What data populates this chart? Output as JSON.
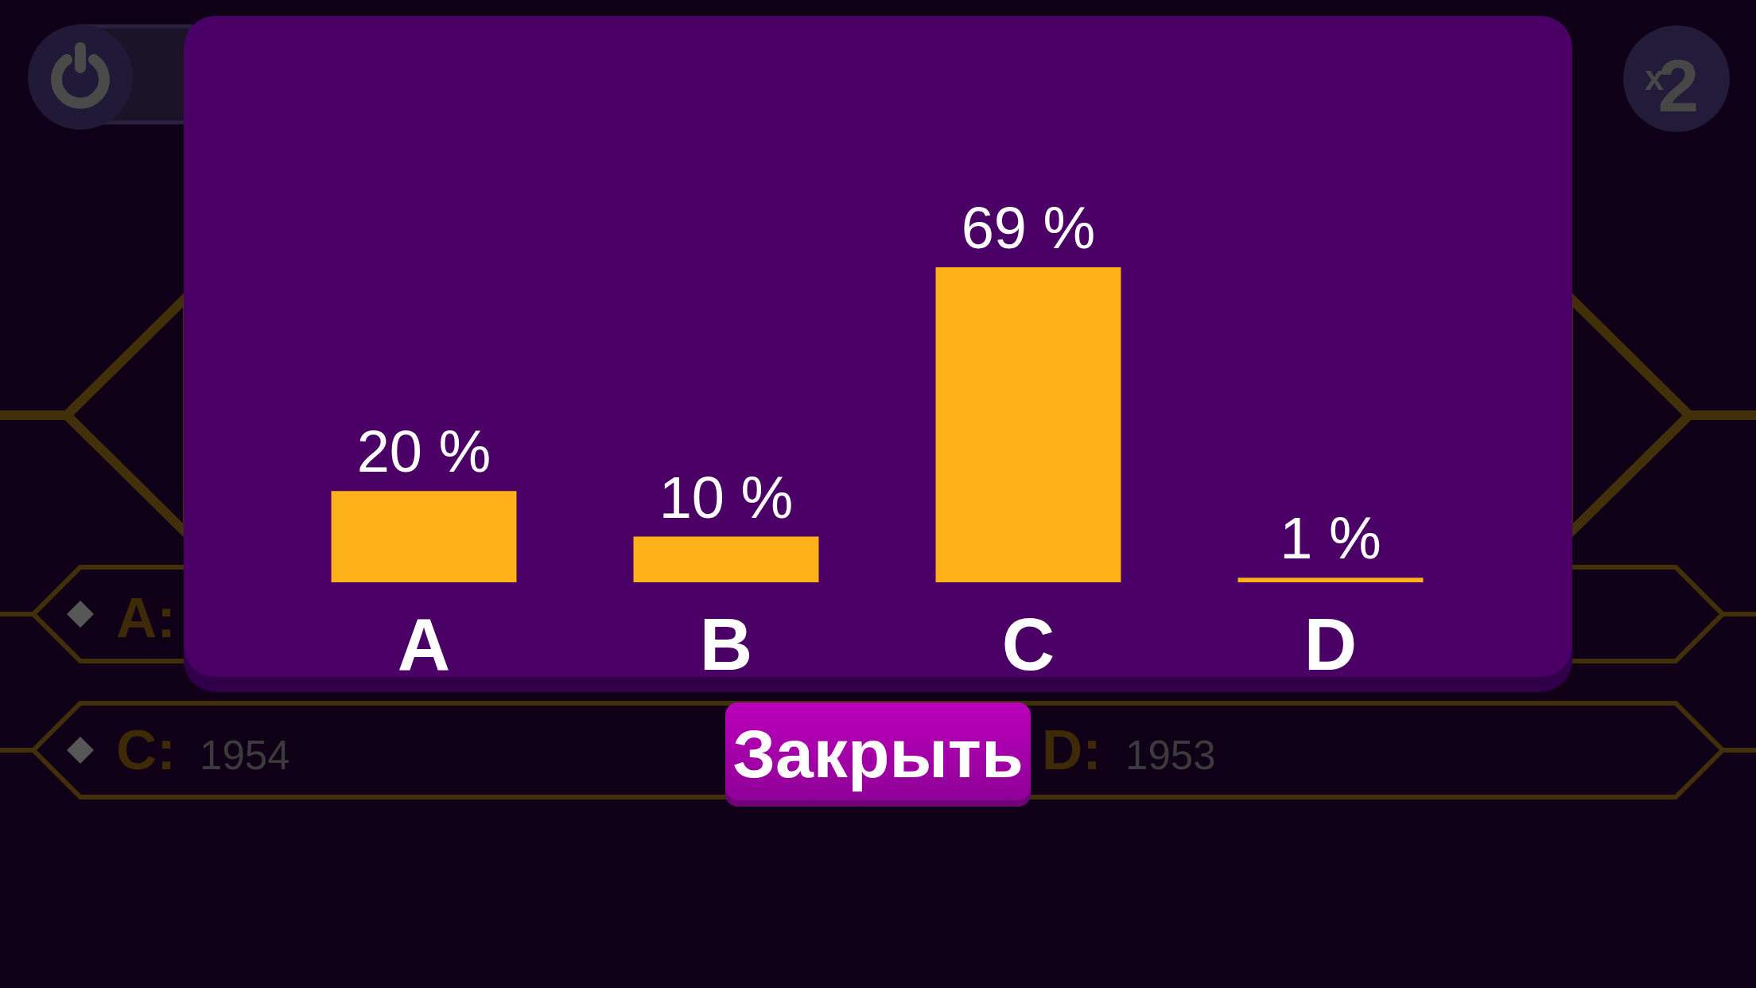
{
  "chart_data": {
    "type": "bar",
    "categories": [
      "A",
      "B",
      "C",
      "D"
    ],
    "values": [
      20,
      10,
      69,
      1
    ],
    "value_labels": [
      "20 %",
      "10 %",
      "69 %",
      "1 %"
    ],
    "color": "#fdb219",
    "annotations": [
      "A:",
      "C: 1954",
      "D: 1953",
      "x2",
      "Закрыть"
    ]
  }
}
